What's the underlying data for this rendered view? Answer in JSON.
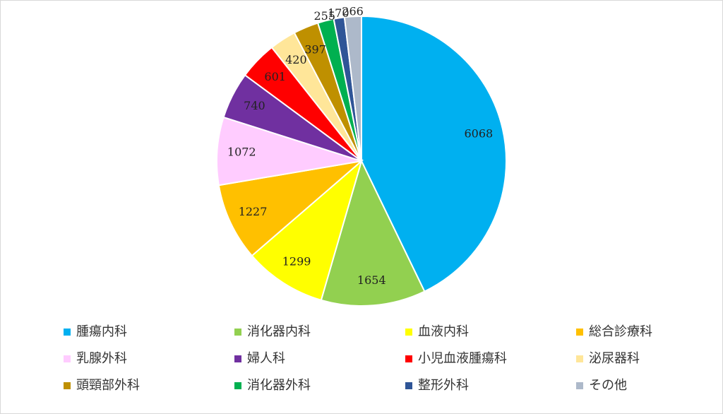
{
  "chart_data": {
    "type": "pie",
    "categories": [
      "腫瘍内科",
      "消化器内科",
      "血液内科",
      "総合診療科",
      "乳腺外科",
      "婦人科",
      "小児血液腫瘍科",
      "泌尿器科",
      "頭頸部外科",
      "消化器外科",
      "整形外科",
      "その他"
    ],
    "values": [
      6068,
      1654,
      1299,
      1227,
      1072,
      740,
      601,
      420,
      397,
      255,
      170,
      266
    ],
    "colors": [
      "#00b0f0",
      "#92d050",
      "#ffff00",
      "#ffc000",
      "#ffccff",
      "#7030a0",
      "#ff0000",
      "#ffe699",
      "#bf9000",
      "#00b050",
      "#2f5597",
      "#adb9ca"
    ],
    "legend": "bottom"
  }
}
